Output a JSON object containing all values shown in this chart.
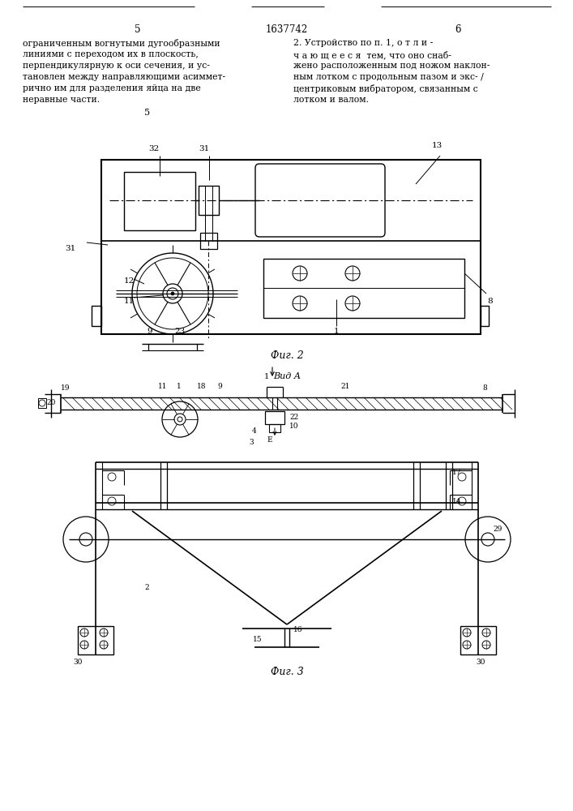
{
  "page_width": 7.07,
  "page_height": 10.0,
  "bg_color": "#ffffff",
  "text_color": "#000000",
  "line_color": "#000000",
  "header_left_num": "5",
  "header_center_num": "1637742",
  "header_right_num": "6",
  "left_text_lines": [
    "ограниченным вогнутыми дугообразными",
    "линиями с переходом их в плоскость,",
    "перпендикулярную к оси сечения, и ус-",
    "тановлен между направляющими асиммет-",
    "рично им для разделения яйца на две",
    "неравные части."
  ],
  "right_text_lines": [
    "2. Устройство по п. 1, о т л и -",
    "ч а ю щ е е с я  тем, что оно снаб-",
    "жено расположенным под ножом наклон-",
    "ным лотком с продольным пазом и экс- /",
    "центриковым вибратором, связанным с",
    "лотком и валом."
  ],
  "fig2_label": "Фиг. 2",
  "fig3_label": "Фиг. 3",
  "view_label": "Вид А"
}
